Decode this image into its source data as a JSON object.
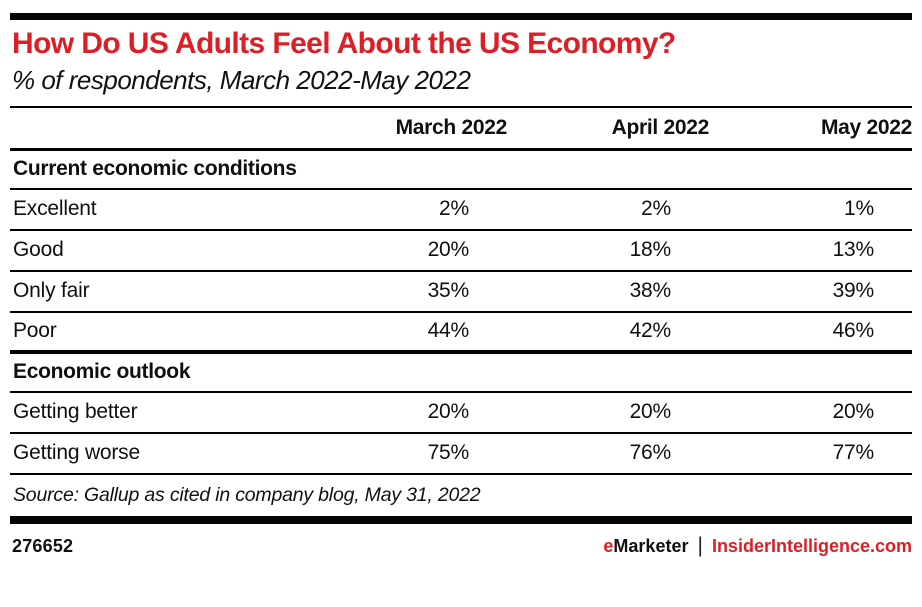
{
  "colors": {
    "accent_red": "#dc1f26",
    "bar_black": "#060606"
  },
  "chart_data": {
    "type": "table",
    "title": "How Do US Adults Feel About the US Economy?",
    "subtitle": "% of respondents, March 2022-May 2022",
    "columns": [
      "March 2022",
      "April 2022",
      "May 2022"
    ],
    "sections": [
      {
        "label": "Current economic conditions",
        "rows": [
          {
            "label": "Excellent",
            "values": [
              "2%",
              "2%",
              "1%"
            ]
          },
          {
            "label": "Good",
            "values": [
              "20%",
              "18%",
              "13%"
            ]
          },
          {
            "label": "Only fair",
            "values": [
              "35%",
              "38%",
              "39%"
            ]
          },
          {
            "label": "Poor",
            "values": [
              "44%",
              "42%",
              "46%"
            ]
          }
        ]
      },
      {
        "label": "Economic outlook",
        "rows": [
          {
            "label": "Getting better",
            "values": [
              "20%",
              "20%",
              "20%"
            ]
          },
          {
            "label": "Getting worse",
            "values": [
              "75%",
              "76%",
              "77%"
            ]
          }
        ]
      }
    ],
    "source": "Source: Gallup as cited in company blog, May 31, 2022"
  },
  "footer": {
    "chart_id": "276652",
    "brand_e": "e",
    "brand_rest": "Marketer",
    "separator": "|",
    "site": "InsiderIntelligence.com"
  }
}
